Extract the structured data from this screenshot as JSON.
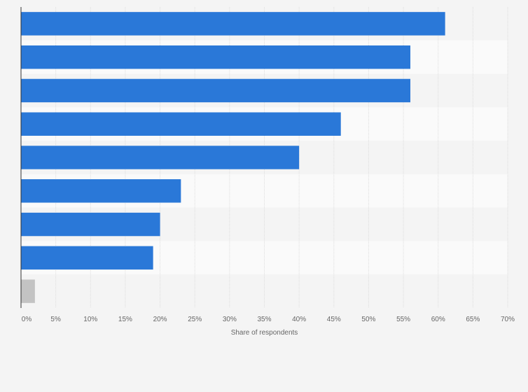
{
  "chart_data": {
    "type": "bar",
    "orientation": "horizontal",
    "categories": [
      "",
      "",
      "",
      "",
      "",
      "",
      "",
      "",
      ""
    ],
    "values": [
      61,
      56,
      56,
      46,
      40,
      23,
      20,
      19,
      2
    ],
    "bar_colors": [
      "#2a78d8",
      "#2a78d8",
      "#2a78d8",
      "#2a78d8",
      "#2a78d8",
      "#2a78d8",
      "#2a78d8",
      "#2a78d8",
      "#c3c3c3"
    ],
    "xlim": [
      0,
      70
    ],
    "x_ticks": [
      0,
      5,
      10,
      15,
      20,
      25,
      30,
      35,
      40,
      45,
      50,
      55,
      60,
      65,
      70
    ],
    "x_tick_labels": [
      "0%",
      "5%",
      "10%",
      "15%",
      "20%",
      "25%",
      "30%",
      "35%",
      "40%",
      "45%",
      "50%",
      "55%",
      "60%",
      "65%",
      "70%"
    ],
    "xlabel": "Share of respondents",
    "ylabel": "",
    "title": "",
    "grid": "vertical",
    "legend": "none",
    "colors": {
      "bar": "#2a78d8",
      "bar_other": "#c3c3c3",
      "background": "#f4f4f4",
      "band_light": "#fafafa",
      "band_dark": "#f4f4f4",
      "grid": "#dddddd",
      "axis": "#333333"
    }
  }
}
